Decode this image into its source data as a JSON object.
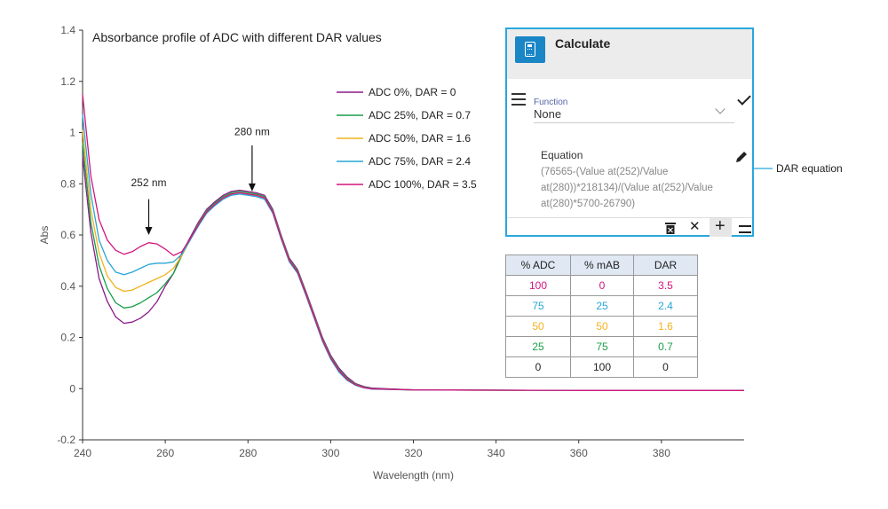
{
  "chart_data": {
    "type": "line",
    "title": "Absorbance profile of ADC with different DAR values",
    "xlabel": "Wavelength (nm)",
    "ylabel": "Abs",
    "xlim": [
      240,
      400
    ],
    "ylim": [
      -0.2,
      1.4
    ],
    "xticks": [
      240,
      260,
      280,
      300,
      320,
      340,
      360,
      380
    ],
    "yticks": [
      1.4,
      1.2,
      1,
      0.8,
      0.6,
      0.4,
      0.2,
      0,
      -0.2
    ],
    "legend_position": "top-center",
    "series": [
      {
        "name": "ADC 0%, DAR = 0",
        "color": "#8b1a89",
        "points": [
          [
            240,
            0.91
          ],
          [
            242,
            0.61
          ],
          [
            244,
            0.43
          ],
          [
            246,
            0.34
          ],
          [
            248,
            0.28
          ],
          [
            250,
            0.255
          ],
          [
            252,
            0.26
          ],
          [
            254,
            0.275
          ],
          [
            256,
            0.3
          ],
          [
            258,
            0.34
          ],
          [
            260,
            0.4
          ],
          [
            262,
            0.45
          ],
          [
            264,
            0.53
          ],
          [
            266,
            0.59
          ],
          [
            268,
            0.65
          ],
          [
            270,
            0.7
          ],
          [
            272,
            0.73
          ],
          [
            274,
            0.755
          ],
          [
            276,
            0.77
          ],
          [
            278,
            0.775
          ],
          [
            280,
            0.77
          ],
          [
            282,
            0.765
          ],
          [
            284,
            0.755
          ],
          [
            286,
            0.7
          ],
          [
            288,
            0.6
          ],
          [
            290,
            0.51
          ],
          [
            292,
            0.465
          ],
          [
            294,
            0.38
          ],
          [
            296,
            0.29
          ],
          [
            298,
            0.2
          ],
          [
            300,
            0.13
          ],
          [
            302,
            0.08
          ],
          [
            304,
            0.045
          ],
          [
            306,
            0.02
          ],
          [
            308,
            0.008
          ],
          [
            310,
            0.002
          ],
          [
            320,
            -0.005
          ],
          [
            340,
            -0.006
          ],
          [
            360,
            -0.007
          ],
          [
            380,
            -0.007
          ],
          [
            400,
            -0.007
          ]
        ]
      },
      {
        "name": "ADC 25%, DAR = 0.7",
        "color": "#1a9e4a",
        "points": [
          [
            240,
            0.96
          ],
          [
            242,
            0.65
          ],
          [
            244,
            0.48
          ],
          [
            246,
            0.39
          ],
          [
            248,
            0.335
          ],
          [
            250,
            0.315
          ],
          [
            252,
            0.32
          ],
          [
            254,
            0.335
          ],
          [
            256,
            0.355
          ],
          [
            258,
            0.375
          ],
          [
            260,
            0.41
          ],
          [
            262,
            0.45
          ],
          [
            264,
            0.52
          ],
          [
            266,
            0.585
          ],
          [
            268,
            0.645
          ],
          [
            270,
            0.695
          ],
          [
            272,
            0.725
          ],
          [
            274,
            0.75
          ],
          [
            276,
            0.765
          ],
          [
            278,
            0.77
          ],
          [
            280,
            0.765
          ],
          [
            282,
            0.76
          ],
          [
            284,
            0.75
          ],
          [
            286,
            0.695
          ],
          [
            288,
            0.595
          ],
          [
            290,
            0.505
          ],
          [
            292,
            0.46
          ],
          [
            294,
            0.375
          ],
          [
            296,
            0.285
          ],
          [
            298,
            0.195
          ],
          [
            300,
            0.125
          ],
          [
            302,
            0.075
          ],
          [
            304,
            0.04
          ],
          [
            306,
            0.018
          ],
          [
            308,
            0.006
          ],
          [
            310,
            0.0
          ],
          [
            320,
            -0.005
          ],
          [
            340,
            -0.006
          ],
          [
            360,
            -0.007
          ],
          [
            380,
            -0.007
          ],
          [
            400,
            -0.007
          ]
        ]
      },
      {
        "name": "ADC 50%, DAR = 1.6",
        "color": "#f2b21f",
        "points": [
          [
            240,
            1.01
          ],
          [
            242,
            0.7
          ],
          [
            244,
            0.53
          ],
          [
            246,
            0.44
          ],
          [
            248,
            0.395
          ],
          [
            250,
            0.38
          ],
          [
            252,
            0.385
          ],
          [
            254,
            0.4
          ],
          [
            256,
            0.415
          ],
          [
            258,
            0.43
          ],
          [
            260,
            0.445
          ],
          [
            262,
            0.47
          ],
          [
            264,
            0.52
          ],
          [
            266,
            0.58
          ],
          [
            268,
            0.64
          ],
          [
            270,
            0.69
          ],
          [
            272,
            0.72
          ],
          [
            274,
            0.745
          ],
          [
            276,
            0.76
          ],
          [
            278,
            0.765
          ],
          [
            280,
            0.76
          ],
          [
            282,
            0.755
          ],
          [
            284,
            0.745
          ],
          [
            286,
            0.69
          ],
          [
            288,
            0.59
          ],
          [
            290,
            0.5
          ],
          [
            292,
            0.455
          ],
          [
            294,
            0.37
          ],
          [
            296,
            0.28
          ],
          [
            298,
            0.19
          ],
          [
            300,
            0.12
          ],
          [
            302,
            0.07
          ],
          [
            304,
            0.035
          ],
          [
            306,
            0.015
          ],
          [
            308,
            0.004
          ],
          [
            310,
            -0.001
          ],
          [
            320,
            -0.005
          ],
          [
            340,
            -0.006
          ],
          [
            360,
            -0.007
          ],
          [
            380,
            -0.007
          ],
          [
            400,
            -0.007
          ]
        ]
      },
      {
        "name": "ADC 75%, DAR = 2.4",
        "color": "#29a6d6",
        "points": [
          [
            240,
            1.07
          ],
          [
            242,
            0.76
          ],
          [
            244,
            0.58
          ],
          [
            246,
            0.5
          ],
          [
            248,
            0.455
          ],
          [
            250,
            0.445
          ],
          [
            252,
            0.455
          ],
          [
            254,
            0.47
          ],
          [
            256,
            0.485
          ],
          [
            258,
            0.49
          ],
          [
            260,
            0.49
          ],
          [
            262,
            0.495
          ],
          [
            264,
            0.525
          ],
          [
            266,
            0.58
          ],
          [
            268,
            0.635
          ],
          [
            270,
            0.685
          ],
          [
            272,
            0.715
          ],
          [
            274,
            0.74
          ],
          [
            276,
            0.755
          ],
          [
            278,
            0.76
          ],
          [
            280,
            0.755
          ],
          [
            282,
            0.75
          ],
          [
            284,
            0.74
          ],
          [
            286,
            0.685
          ],
          [
            288,
            0.585
          ],
          [
            290,
            0.495
          ],
          [
            292,
            0.45
          ],
          [
            294,
            0.365
          ],
          [
            296,
            0.275
          ],
          [
            298,
            0.185
          ],
          [
            300,
            0.115
          ],
          [
            302,
            0.065
          ],
          [
            304,
            0.032
          ],
          [
            306,
            0.013
          ],
          [
            308,
            0.003
          ],
          [
            310,
            -0.002
          ],
          [
            320,
            -0.005
          ],
          [
            340,
            -0.006
          ],
          [
            360,
            -0.007
          ],
          [
            380,
            -0.007
          ],
          [
            400,
            -0.007
          ]
        ]
      },
      {
        "name": "ADC 100%, DAR = 3.5",
        "color": "#d4157e",
        "points": [
          [
            240,
            1.15
          ],
          [
            242,
            0.83
          ],
          [
            244,
            0.66
          ],
          [
            246,
            0.58
          ],
          [
            248,
            0.54
          ],
          [
            250,
            0.525
          ],
          [
            252,
            0.535
          ],
          [
            254,
            0.555
          ],
          [
            256,
            0.57
          ],
          [
            258,
            0.565
          ],
          [
            260,
            0.545
          ],
          [
            262,
            0.52
          ],
          [
            264,
            0.535
          ],
          [
            266,
            0.585
          ],
          [
            268,
            0.64
          ],
          [
            270,
            0.69
          ],
          [
            272,
            0.72
          ],
          [
            274,
            0.745
          ],
          [
            276,
            0.76
          ],
          [
            278,
            0.765
          ],
          [
            280,
            0.76
          ],
          [
            282,
            0.755
          ],
          [
            284,
            0.745
          ],
          [
            286,
            0.69
          ],
          [
            288,
            0.59
          ],
          [
            290,
            0.5
          ],
          [
            292,
            0.455
          ],
          [
            294,
            0.37
          ],
          [
            296,
            0.28
          ],
          [
            298,
            0.19
          ],
          [
            300,
            0.12
          ],
          [
            302,
            0.07
          ],
          [
            304,
            0.035
          ],
          [
            306,
            0.015
          ],
          [
            308,
            0.004
          ],
          [
            310,
            -0.001
          ],
          [
            320,
            -0.005
          ],
          [
            340,
            -0.006
          ],
          [
            360,
            -0.007
          ],
          [
            380,
            -0.007
          ],
          [
            400,
            -0.007
          ]
        ]
      }
    ],
    "annotations": [
      {
        "text": "252 nm",
        "x": 256,
        "y": 0.6,
        "arrow_from": 0.74,
        "text_y": 0.79
      },
      {
        "text": "280 nm",
        "x": 281,
        "y": 0.77,
        "arrow_from": 0.95,
        "text_y": 0.99
      }
    ]
  },
  "calculate_panel": {
    "title": "Calculate",
    "function_label": "Function",
    "function_value": "None",
    "equation_label": "Equation",
    "equation_lines": [
      "(76565-(Value at(252)/Value",
      "at(280))*218134)/(Value at(252)/Value",
      "at(280)*5700-26790)"
    ],
    "callout": "DAR equation"
  },
  "table": {
    "headers": [
      "% ADC",
      "% mAB",
      "DAR"
    ],
    "rows": [
      {
        "cells": [
          "100",
          "0",
          "3.5"
        ],
        "color": "#d4157e"
      },
      {
        "cells": [
          "75",
          "25",
          "2.4"
        ],
        "color": "#29a6d6"
      },
      {
        "cells": [
          "50",
          "50",
          "1.6"
        ],
        "color": "#f2b21f"
      },
      {
        "cells": [
          "25",
          "75",
          "0.7"
        ],
        "color": "#1a9e4a"
      },
      {
        "cells": [
          "0",
          "100",
          "0"
        ],
        "color": "#222222"
      }
    ]
  }
}
